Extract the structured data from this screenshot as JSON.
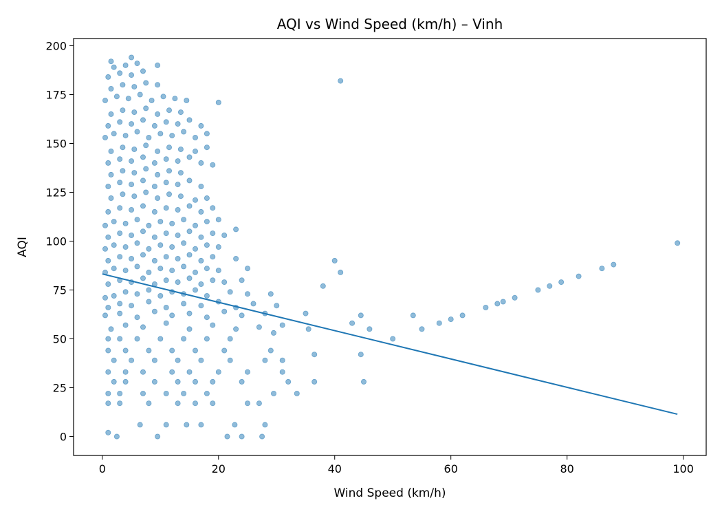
{
  "chart_data": {
    "type": "scatter",
    "title": "AQI vs Wind Speed (km/h) – Vinh",
    "xlabel": "Wind Speed (km/h)",
    "ylabel": "AQI",
    "xlim": [
      -4.95,
      103.95
    ],
    "ylim": [
      -9.7,
      203.7
    ],
    "xticks": [
      0,
      20,
      40,
      60,
      80,
      100
    ],
    "yticks": [
      0,
      25,
      50,
      75,
      100,
      125,
      150,
      175,
      200
    ],
    "grid": false,
    "legend": "none",
    "point_color": "#1f77b4",
    "point_alpha": 0.5,
    "line_color": "#1f77b4",
    "trend_line": {
      "x": [
        0,
        99
      ],
      "y": [
        83.2,
        11.4
      ]
    },
    "series": [
      {
        "type": "scatter",
        "points": [
          [
            1,
            2
          ],
          [
            2.5,
            0
          ],
          [
            9.5,
            0
          ],
          [
            21.5,
            0
          ],
          [
            24,
            0
          ],
          [
            27.5,
            0
          ],
          [
            28,
            6
          ],
          [
            6.5,
            6
          ],
          [
            11,
            6
          ],
          [
            14.5,
            6
          ],
          [
            17,
            6
          ],
          [
            22.8,
            6
          ],
          [
            1,
            17
          ],
          [
            3,
            17
          ],
          [
            8,
            17
          ],
          [
            13,
            17
          ],
          [
            16,
            17
          ],
          [
            19,
            17
          ],
          [
            25,
            17
          ],
          [
            27,
            17
          ],
          [
            1,
            22
          ],
          [
            3,
            22
          ],
          [
            7,
            22
          ],
          [
            11,
            22
          ],
          [
            14,
            22
          ],
          [
            18,
            22
          ],
          [
            29.5,
            22
          ],
          [
            33.5,
            22
          ],
          [
            2,
            28
          ],
          [
            4,
            28
          ],
          [
            9,
            28
          ],
          [
            13,
            28
          ],
          [
            16,
            28
          ],
          [
            19,
            28
          ],
          [
            24,
            28
          ],
          [
            32,
            28
          ],
          [
            36.5,
            28
          ],
          [
            45,
            28
          ],
          [
            1,
            33
          ],
          [
            4,
            33
          ],
          [
            7,
            33
          ],
          [
            12,
            33
          ],
          [
            15,
            33
          ],
          [
            20,
            33
          ],
          [
            25,
            33
          ],
          [
            31,
            33
          ],
          [
            2,
            39
          ],
          [
            5,
            39
          ],
          [
            9,
            39
          ],
          [
            13,
            39
          ],
          [
            17,
            39
          ],
          [
            22,
            39
          ],
          [
            28,
            39
          ],
          [
            31,
            39
          ],
          [
            1,
            44
          ],
          [
            4,
            44
          ],
          [
            8,
            44
          ],
          [
            12,
            44
          ],
          [
            16,
            44
          ],
          [
            21,
            44
          ],
          [
            29,
            44
          ],
          [
            36.5,
            42
          ],
          [
            44.5,
            42
          ],
          [
            1,
            50
          ],
          [
            3,
            50
          ],
          [
            6,
            50
          ],
          [
            10,
            50
          ],
          [
            14,
            50
          ],
          [
            18,
            50
          ],
          [
            22,
            50
          ],
          [
            29.5,
            53
          ],
          [
            50,
            50
          ],
          [
            1.5,
            55
          ],
          [
            4,
            57
          ],
          [
            7,
            56
          ],
          [
            11,
            58
          ],
          [
            15,
            55
          ],
          [
            19,
            57
          ],
          [
            23,
            55
          ],
          [
            27,
            56
          ],
          [
            31,
            57
          ],
          [
            35.5,
            55
          ],
          [
            43,
            58
          ],
          [
            46,
            55
          ],
          [
            55,
            55
          ],
          [
            0.5,
            62
          ],
          [
            3,
            63
          ],
          [
            6,
            61
          ],
          [
            9,
            64
          ],
          [
            12,
            62
          ],
          [
            15,
            63
          ],
          [
            18,
            61
          ],
          [
            21,
            64
          ],
          [
            24,
            62
          ],
          [
            28,
            63
          ],
          [
            35,
            63
          ],
          [
            44.5,
            62
          ],
          [
            53.5,
            62
          ],
          [
            58,
            58
          ],
          [
            60,
            60
          ],
          [
            62,
            62
          ],
          [
            1,
            66
          ],
          [
            3,
            68
          ],
          [
            5,
            67
          ],
          [
            8,
            69
          ],
          [
            11,
            66
          ],
          [
            14,
            68
          ],
          [
            17,
            67
          ],
          [
            20,
            69
          ],
          [
            23,
            66
          ],
          [
            26,
            68
          ],
          [
            30,
            67
          ],
          [
            66,
            66
          ],
          [
            68,
            68
          ],
          [
            69,
            69
          ],
          [
            71,
            71
          ],
          [
            0.5,
            71
          ],
          [
            2,
            72
          ],
          [
            4,
            74
          ],
          [
            6,
            73
          ],
          [
            8,
            75
          ],
          [
            10,
            72
          ],
          [
            12,
            74
          ],
          [
            14,
            73
          ],
          [
            16,
            75
          ],
          [
            18,
            72
          ],
          [
            22,
            74
          ],
          [
            25,
            73
          ],
          [
            29,
            73
          ],
          [
            38,
            77
          ],
          [
            75,
            75
          ],
          [
            77,
            77
          ],
          [
            1,
            78
          ],
          [
            3,
            80
          ],
          [
            5,
            79
          ],
          [
            7,
            81
          ],
          [
            9,
            78
          ],
          [
            11,
            80
          ],
          [
            13,
            79
          ],
          [
            15,
            81
          ],
          [
            17,
            78
          ],
          [
            19,
            80
          ],
          [
            21,
            79
          ],
          [
            24,
            80
          ],
          [
            79,
            79
          ],
          [
            0.5,
            84
          ],
          [
            2,
            86
          ],
          [
            4,
            85
          ],
          [
            6,
            87
          ],
          [
            8,
            84
          ],
          [
            10,
            86
          ],
          [
            12,
            85
          ],
          [
            14,
            87
          ],
          [
            16,
            84
          ],
          [
            18,
            86
          ],
          [
            20,
            85
          ],
          [
            25,
            86
          ],
          [
            41,
            84
          ],
          [
            82,
            82
          ],
          [
            86,
            86
          ],
          [
            88,
            88
          ],
          [
            1,
            90
          ],
          [
            3,
            92
          ],
          [
            5,
            91
          ],
          [
            7,
            93
          ],
          [
            9,
            90
          ],
          [
            11,
            92
          ],
          [
            13,
            91
          ],
          [
            15,
            93
          ],
          [
            17,
            90
          ],
          [
            19,
            92
          ],
          [
            23,
            91
          ],
          [
            40,
            90
          ],
          [
            0.5,
            96
          ],
          [
            2,
            98
          ],
          [
            4,
            97
          ],
          [
            6,
            99
          ],
          [
            8,
            96
          ],
          [
            10,
            98
          ],
          [
            12,
            97
          ],
          [
            14,
            99
          ],
          [
            16,
            96
          ],
          [
            18,
            98
          ],
          [
            20,
            97
          ],
          [
            99,
            99
          ],
          [
            1,
            102
          ],
          [
            3,
            104
          ],
          [
            5,
            103
          ],
          [
            7,
            105
          ],
          [
            9,
            102
          ],
          [
            11,
            104
          ],
          [
            13,
            103
          ],
          [
            15,
            105
          ],
          [
            17,
            102
          ],
          [
            19,
            104
          ],
          [
            21,
            103
          ],
          [
            23,
            106
          ],
          [
            0.5,
            108
          ],
          [
            2,
            110
          ],
          [
            4,
            109
          ],
          [
            6,
            111
          ],
          [
            8,
            108
          ],
          [
            10,
            110
          ],
          [
            12,
            109
          ],
          [
            14,
            111
          ],
          [
            16,
            108
          ],
          [
            18,
            110
          ],
          [
            20,
            111
          ],
          [
            1,
            115
          ],
          [
            3,
            117
          ],
          [
            5,
            116
          ],
          [
            7,
            118
          ],
          [
            9,
            115
          ],
          [
            11,
            117
          ],
          [
            13,
            116
          ],
          [
            15,
            118
          ],
          [
            17,
            115
          ],
          [
            19,
            117
          ],
          [
            1.5,
            122
          ],
          [
            3.5,
            124
          ],
          [
            5.5,
            123
          ],
          [
            7.5,
            125
          ],
          [
            9.5,
            122
          ],
          [
            11.5,
            124
          ],
          [
            13.5,
            123
          ],
          [
            16,
            121
          ],
          [
            18,
            122
          ],
          [
            1,
            128
          ],
          [
            3,
            130
          ],
          [
            5,
            129
          ],
          [
            7,
            131
          ],
          [
            9,
            128
          ],
          [
            11,
            130
          ],
          [
            13,
            129
          ],
          [
            15,
            131
          ],
          [
            17,
            128
          ],
          [
            1.5,
            134
          ],
          [
            3.5,
            136
          ],
          [
            5.5,
            135
          ],
          [
            7.5,
            137
          ],
          [
            9.5,
            134
          ],
          [
            11.5,
            136
          ],
          [
            13.5,
            135
          ],
          [
            19,
            139
          ],
          [
            1,
            140
          ],
          [
            3,
            142
          ],
          [
            5,
            141
          ],
          [
            7,
            143
          ],
          [
            9,
            140
          ],
          [
            11,
            142
          ],
          [
            13,
            141
          ],
          [
            15,
            143
          ],
          [
            17,
            140
          ],
          [
            1.5,
            146
          ],
          [
            3.5,
            148
          ],
          [
            5.5,
            147
          ],
          [
            7.5,
            149
          ],
          [
            9.5,
            146
          ],
          [
            11.5,
            148
          ],
          [
            13.5,
            147
          ],
          [
            16,
            146
          ],
          [
            18,
            148
          ],
          [
            0.5,
            153
          ],
          [
            2,
            155
          ],
          [
            4,
            154
          ],
          [
            6,
            156
          ],
          [
            8,
            153
          ],
          [
            10,
            155
          ],
          [
            12,
            154
          ],
          [
            14,
            156
          ],
          [
            16,
            153
          ],
          [
            18,
            155
          ],
          [
            1,
            159
          ],
          [
            3,
            161
          ],
          [
            5,
            160
          ],
          [
            7,
            162
          ],
          [
            9,
            159
          ],
          [
            11,
            161
          ],
          [
            13,
            160
          ],
          [
            15,
            162
          ],
          [
            17,
            159
          ],
          [
            1.5,
            165
          ],
          [
            3.5,
            167
          ],
          [
            5.5,
            166
          ],
          [
            7.5,
            168
          ],
          [
            9.5,
            165
          ],
          [
            11.5,
            167
          ],
          [
            13.5,
            166
          ],
          [
            20,
            171
          ],
          [
            0.5,
            172
          ],
          [
            2.5,
            174
          ],
          [
            4.5,
            173
          ],
          [
            6.5,
            175
          ],
          [
            8.5,
            172
          ],
          [
            10.5,
            174
          ],
          [
            12.5,
            173
          ],
          [
            14.5,
            172
          ],
          [
            1.5,
            178
          ],
          [
            3.5,
            180
          ],
          [
            5.5,
            179
          ],
          [
            7.5,
            181
          ],
          [
            9.5,
            180
          ],
          [
            41,
            182
          ],
          [
            1,
            184
          ],
          [
            3,
            186
          ],
          [
            5,
            185
          ],
          [
            7,
            187
          ],
          [
            2,
            189
          ],
          [
            4,
            190
          ],
          [
            6,
            191
          ],
          [
            9.5,
            190
          ],
          [
            5,
            194
          ],
          [
            1.5,
            192
          ]
        ]
      }
    ]
  }
}
